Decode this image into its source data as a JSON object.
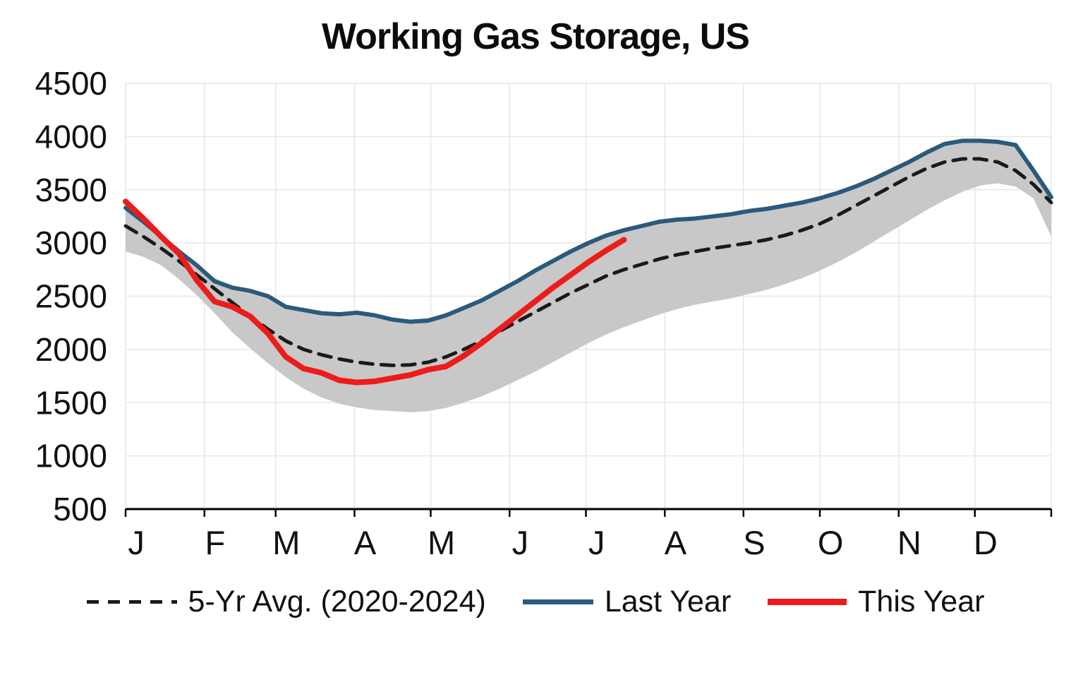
{
  "chart_data": {
    "type": "line",
    "title": "Working Gas Storage, US",
    "xlabel": "",
    "ylabel": "",
    "ylim": [
      500,
      4500
    ],
    "y_ticks": [
      500,
      1000,
      1500,
      2000,
      2500,
      3000,
      3500,
      4000,
      4500
    ],
    "x_range": [
      0,
      52
    ],
    "x": [
      0,
      1,
      2,
      3,
      4,
      5,
      6,
      7,
      8,
      9,
      10,
      11,
      12,
      13,
      14,
      15,
      16,
      17,
      18,
      19,
      20,
      21,
      22,
      23,
      24,
      25,
      26,
      27,
      28,
      29,
      30,
      31,
      32,
      33,
      34,
      35,
      36,
      37,
      38,
      39,
      40,
      41,
      42,
      43,
      44,
      45,
      46,
      47,
      48,
      49,
      50,
      51,
      52
    ],
    "x_tick_labels": [
      "J",
      "F",
      "M",
      "A",
      "M",
      "J",
      "J",
      "A",
      "S",
      "O",
      "N",
      "D"
    ],
    "month_start_weeks": [
      0,
      4.43,
      8.43,
      12.86,
      17.14,
      21.57,
      25.86,
      30.29,
      34.71,
      39.0,
      43.43,
      47.71
    ],
    "grid": true,
    "legend_position": "bottom",
    "colors": {
      "grid": "#e7e7e7",
      "axis": "#000000",
      "text": "#111111",
      "background": "#ffffff"
    },
    "band": {
      "key": "five-year-range",
      "color": "#c8c8c8",
      "upper": [
        3350,
        3210,
        3070,
        2940,
        2810,
        2670,
        2600,
        2565,
        2510,
        2420,
        2385,
        2355,
        2345,
        2355,
        2330,
        2295,
        2280,
        2295,
        2340,
        2405,
        2475,
        2565,
        2655,
        2750,
        2840,
        2930,
        3010,
        3080,
        3130,
        3170,
        3210,
        3230,
        3240,
        3260,
        3280,
        3310,
        3330,
        3360,
        3390,
        3430,
        3480,
        3540,
        3610,
        3690,
        3770,
        3860,
        3935,
        3965,
        3970,
        3960,
        3930,
        3720,
        3470
      ],
      "lower": [
        2920,
        2870,
        2790,
        2660,
        2510,
        2340,
        2160,
        2010,
        1870,
        1740,
        1630,
        1550,
        1490,
        1455,
        1430,
        1420,
        1410,
        1420,
        1450,
        1500,
        1560,
        1630,
        1710,
        1790,
        1880,
        1970,
        2060,
        2140,
        2210,
        2270,
        2330,
        2380,
        2420,
        2450,
        2480,
        2520,
        2560,
        2610,
        2670,
        2740,
        2820,
        2910,
        3010,
        3110,
        3210,
        3310,
        3400,
        3480,
        3540,
        3560,
        3530,
        3420,
        3060
      ]
    },
    "series": [
      {
        "key": "five-yr-avg",
        "name": "5-Yr Avg. (2020-2024)",
        "style": "dashed",
        "color": "#1a1a1a",
        "width": 5,
        "values": [
          3160,
          3060,
          2950,
          2830,
          2700,
          2570,
          2440,
          2310,
          2190,
          2080,
          2000,
          1950,
          1910,
          1880,
          1860,
          1850,
          1855,
          1880,
          1930,
          2000,
          2080,
          2170,
          2260,
          2350,
          2440,
          2530,
          2610,
          2690,
          2750,
          2800,
          2850,
          2890,
          2920,
          2950,
          2975,
          3000,
          3030,
          3070,
          3120,
          3180,
          3260,
          3350,
          3440,
          3530,
          3620,
          3700,
          3760,
          3790,
          3790,
          3760,
          3680,
          3550,
          3380
        ]
      },
      {
        "key": "last-year",
        "name": "Last Year",
        "style": "solid",
        "color": "#2a5a7c",
        "width": 6,
        "values": [
          3330,
          3200,
          3060,
          2920,
          2790,
          2640,
          2580,
          2550,
          2500,
          2400,
          2370,
          2340,
          2330,
          2345,
          2320,
          2280,
          2260,
          2270,
          2320,
          2390,
          2460,
          2550,
          2640,
          2740,
          2830,
          2920,
          3000,
          3070,
          3120,
          3160,
          3200,
          3220,
          3230,
          3250,
          3270,
          3300,
          3320,
          3350,
          3380,
          3420,
          3470,
          3530,
          3600,
          3680,
          3760,
          3850,
          3930,
          3960,
          3960,
          3950,
          3920,
          3680,
          3430
        ]
      },
      {
        "key": "this-year",
        "name": "This Year",
        "style": "solid",
        "color": "#ee1b1b",
        "width": 8,
        "values": [
          3390,
          3230,
          3060,
          2900,
          2650,
          2450,
          2400,
          2310,
          2150,
          1930,
          1820,
          1780,
          1710,
          1690,
          1700,
          1730,
          1760,
          1810,
          1840,
          1940,
          2060,
          2190,
          2320,
          2450,
          2580,
          2700,
          2820,
          2930,
          3030
        ]
      }
    ]
  }
}
